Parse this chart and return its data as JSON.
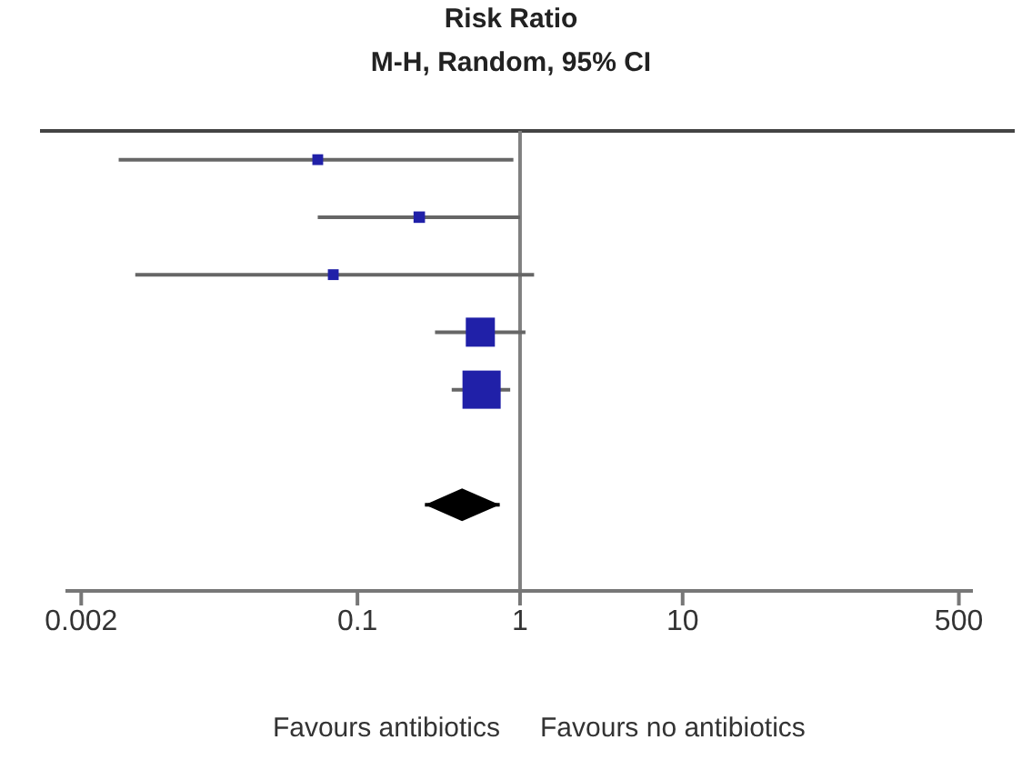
{
  "chart_data": {
    "type": "scatter",
    "title": "Risk Ratio",
    "subtitle": "M-H, Random, 95% CI",
    "orientation": "horizontal",
    "categories": [
      null,
      null,
      null,
      null,
      null,
      null,
      null,
      null
    ],
    "series": [
      {
        "type": "bubble",
        "marker": "square",
        "color": "#2020a8",
        "values": [
          0.057,
          0.24,
          0.071,
          0.57,
          0.58,
          null,
          null,
          null
        ],
        "errors": [
          [
            0.0034,
            0.91
          ],
          [
            0.057,
            1.0
          ],
          [
            0.0043,
            1.22
          ],
          [
            0.3,
            1.08
          ],
          [
            0.38,
            0.87
          ],
          null,
          null,
          null
        ],
        "sizes": [
          0.08,
          0.09,
          0.08,
          0.58,
          1,
          null,
          null,
          null
        ]
      },
      {
        "marker": "diamond",
        "color": "#000000",
        "values": [
          null,
          null,
          null,
          null,
          null,
          null,
          0.44,
          null
        ],
        "errors": [
          null,
          null,
          null,
          null,
          null,
          null,
          [
            0.26,
            0.75
          ],
          null
        ]
      }
    ],
    "log": "x",
    "xlim": [
      0.0016,
      610
    ],
    "xticks": [
      0.002,
      0.1,
      1,
      10,
      500
    ],
    "tick_labels": "x",
    "grid": false,
    "ref_lines": [
      {
        "axis": "x",
        "value": 1,
        "color": "#808080"
      }
    ],
    "annotations": [
      "Favours antibiotics",
      "Favours no antibiotics"
    ]
  }
}
